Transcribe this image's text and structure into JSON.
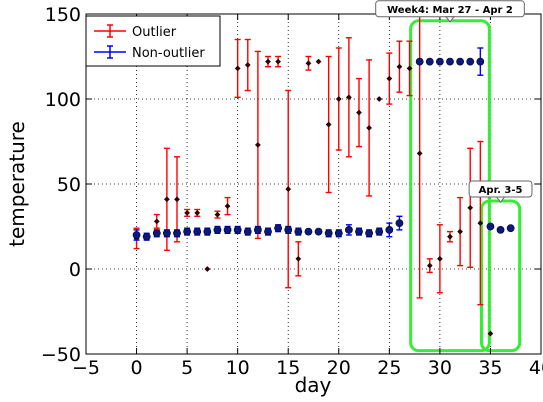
{
  "chart_data": {
    "type": "scatter",
    "xlabel": "day",
    "ylabel": "temperature",
    "xlim": [
      -5,
      40
    ],
    "ylim": [
      -50,
      150
    ],
    "xticks": [
      -5,
      0,
      5,
      10,
      15,
      20,
      25,
      30,
      35,
      40
    ],
    "yticks": [
      -50,
      0,
      50,
      100,
      150
    ],
    "grid": "dotted",
    "legend_placement": "top-left",
    "series": [
      {
        "name": "Outlier",
        "color": "#ff0000",
        "points": [
          {
            "x": 0,
            "y": 18,
            "err": 6
          },
          {
            "x": 2,
            "y": 28,
            "err": 4
          },
          {
            "x": 3,
            "y": 41,
            "err": 30
          },
          {
            "x": 4,
            "y": 41,
            "err": 25
          },
          {
            "x": 5,
            "y": 33,
            "err": 2
          },
          {
            "x": 6,
            "y": 33,
            "err": 2
          },
          {
            "x": 7,
            "y": 0,
            "err": 0
          },
          {
            "x": 8,
            "y": 32,
            "err": 2
          },
          {
            "x": 9,
            "y": 37,
            "err": 5
          },
          {
            "x": 10,
            "y": 118,
            "err": 17
          },
          {
            "x": 11,
            "y": 120,
            "err": 15
          },
          {
            "x": 12,
            "y": 73,
            "err": 55
          },
          {
            "x": 13,
            "y": 122,
            "err": 3
          },
          {
            "x": 14,
            "y": 122,
            "err": 3
          },
          {
            "x": 15,
            "y": 47,
            "err": 58
          },
          {
            "x": 16,
            "y": 6,
            "err": 10
          },
          {
            "x": 17,
            "y": 121,
            "err": 4
          },
          {
            "x": 18,
            "y": 122,
            "err": 0
          },
          {
            "x": 19,
            "y": 85,
            "err": 40
          },
          {
            "x": 20,
            "y": 100,
            "err": 30
          },
          {
            "x": 21,
            "y": 101,
            "err": 35
          },
          {
            "x": 22,
            "y": 92,
            "err": 20
          },
          {
            "x": 23,
            "y": 83,
            "err": 40
          },
          {
            "x": 24,
            "y": 100,
            "err": 0
          },
          {
            "x": 25,
            "y": 112,
            "err": 15
          },
          {
            "x": 26,
            "y": 119,
            "err": 15
          },
          {
            "x": 27,
            "y": 118,
            "err": 16
          },
          {
            "x": 28,
            "y": 68,
            "err": 85
          },
          {
            "x": 29,
            "y": 2,
            "err": 4
          },
          {
            "x": 30,
            "y": 6,
            "err": 20
          },
          {
            "x": 31,
            "y": 19,
            "err": 3
          },
          {
            "x": 32,
            "y": 22,
            "err": 20
          },
          {
            "x": 33,
            "y": 36,
            "err": 35
          },
          {
            "x": 34,
            "y": 27,
            "err": 48
          },
          {
            "x": 35,
            "y": -38,
            "err": 0
          }
        ]
      },
      {
        "name": "Non-outlier",
        "color": "#0000ff",
        "points": [
          {
            "x": 0,
            "y": 20,
            "err": 3
          },
          {
            "x": 1,
            "y": 19,
            "err": 2
          },
          {
            "x": 2,
            "y": 21,
            "err": 2
          },
          {
            "x": 3,
            "y": 21,
            "err": 2
          },
          {
            "x": 4,
            "y": 21,
            "err": 2
          },
          {
            "x": 5,
            "y": 22,
            "err": 2
          },
          {
            "x": 6,
            "y": 22,
            "err": 2
          },
          {
            "x": 7,
            "y": 22,
            "err": 2
          },
          {
            "x": 8,
            "y": 23,
            "err": 2
          },
          {
            "x": 9,
            "y": 23,
            "err": 2
          },
          {
            "x": 10,
            "y": 23,
            "err": 2
          },
          {
            "x": 11,
            "y": 22,
            "err": 2
          },
          {
            "x": 12,
            "y": 23,
            "err": 2
          },
          {
            "x": 13,
            "y": 22,
            "err": 2
          },
          {
            "x": 14,
            "y": 24,
            "err": 2
          },
          {
            "x": 15,
            "y": 23,
            "err": 2
          },
          {
            "x": 16,
            "y": 22,
            "err": 2
          },
          {
            "x": 17,
            "y": 22,
            "err": 1
          },
          {
            "x": 18,
            "y": 22,
            "err": 1
          },
          {
            "x": 19,
            "y": 21,
            "err": 2
          },
          {
            "x": 20,
            "y": 21,
            "err": 2
          },
          {
            "x": 21,
            "y": 23,
            "err": 3
          },
          {
            "x": 22,
            "y": 22,
            "err": 2
          },
          {
            "x": 23,
            "y": 21,
            "err": 2
          },
          {
            "x": 24,
            "y": 22,
            "err": 2
          },
          {
            "x": 25,
            "y": 23,
            "err": 4
          },
          {
            "x": 26,
            "y": 27,
            "err": 4
          },
          {
            "x": 28,
            "y": 122,
            "err": 0
          },
          {
            "x": 29,
            "y": 122,
            "err": 0
          },
          {
            "x": 30,
            "y": 122,
            "err": 0
          },
          {
            "x": 31,
            "y": 122,
            "err": 0
          },
          {
            "x": 32,
            "y": 122,
            "err": 0
          },
          {
            "x": 33,
            "y": 122,
            "err": 0
          },
          {
            "x": 34,
            "y": 122,
            "err": 8
          },
          {
            "x": 35,
            "y": 25,
            "err": 0
          },
          {
            "x": 36,
            "y": 23,
            "err": 1
          },
          {
            "x": 37,
            "y": 24,
            "err": 0
          }
        ]
      }
    ],
    "annotations": [
      {
        "text": "Week4: Mar 27 - Apr 2",
        "x_range": [
          28,
          34
        ],
        "y_range": [
          -48,
          146
        ],
        "highlight_color": "#33ee33"
      },
      {
        "text": "Apr. 3-5",
        "x_range": [
          35,
          37
        ],
        "y_range": [
          -48,
          40
        ],
        "highlight_color": "#33ee33"
      }
    ]
  }
}
